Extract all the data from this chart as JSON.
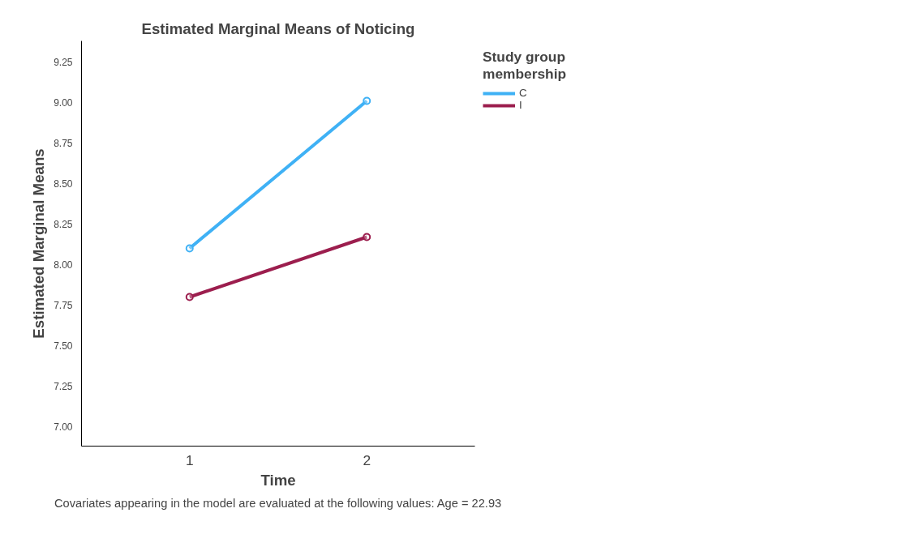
{
  "chart_data": {
    "type": "line",
    "title": "Estimated Marginal Means of Noticing",
    "xlabel": "Time",
    "ylabel": "Estimated Marginal Means",
    "legend_title": "Study group membership",
    "categories": [
      "1",
      "2"
    ],
    "series": [
      {
        "name": "C",
        "color": "#3fb1f5",
        "values": [
          8.1,
          9.01
        ]
      },
      {
        "name": "I",
        "color": "#9c1e4e",
        "values": [
          7.8,
          8.17
        ]
      }
    ],
    "ylim": [
      6.88,
      9.38
    ],
    "yticks": [
      {
        "value": 7,
        "label": "7.00"
      },
      {
        "value": 7.25,
        "label": "7.25"
      },
      {
        "value": 7.5,
        "label": "7.50"
      },
      {
        "value": 7.75,
        "label": "7.75"
      },
      {
        "value": 8,
        "label": "8.00"
      },
      {
        "value": 8.25,
        "label": "8.25"
      },
      {
        "value": 8.5,
        "label": "8.50"
      },
      {
        "value": 8.75,
        "label": "8.75"
      },
      {
        "value": 9,
        "label": "9.00"
      },
      {
        "value": 9.25,
        "label": "9.25"
      }
    ],
    "marker": "circle",
    "grid": false,
    "legend": "top right",
    "line_style": "solid",
    "annotations": [
      "Covariates appearing in the model are evaluated at the following values: Age = 22.93"
    ]
  }
}
